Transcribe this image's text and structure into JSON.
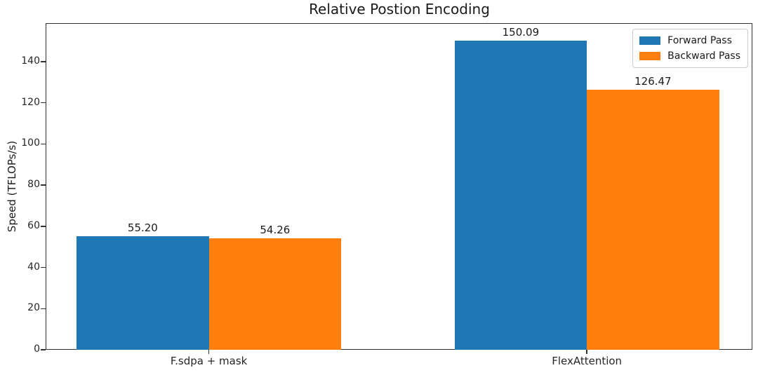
{
  "chart_data": {
    "type": "bar",
    "title": "Relative Postion Encoding",
    "xlabel": "",
    "ylabel": "Speed (TFLOPs/s)",
    "categories": [
      "F.sdpa + mask",
      "FlexAttention"
    ],
    "series": [
      {
        "name": "Forward Pass",
        "color": "#1f77b4",
        "values": [
          55.2,
          150.09
        ],
        "labels": [
          "55.20",
          "150.09"
        ]
      },
      {
        "name": "Backward Pass",
        "color": "#ff7f0e",
        "values": [
          54.26,
          126.47
        ],
        "labels": [
          "54.26",
          "126.47"
        ]
      }
    ],
    "yticks": [
      0,
      20,
      40,
      60,
      80,
      100,
      120,
      140
    ],
    "ylim": [
      0,
      158.7
    ],
    "xlim": [
      -0.432,
      1.438
    ],
    "bar_width": 0.35,
    "bar_offsets": [
      -0.175,
      0.175
    ],
    "grid": false,
    "legend_position": "upper right",
    "axis_color": "#333333",
    "background_color": "#ffffff"
  }
}
